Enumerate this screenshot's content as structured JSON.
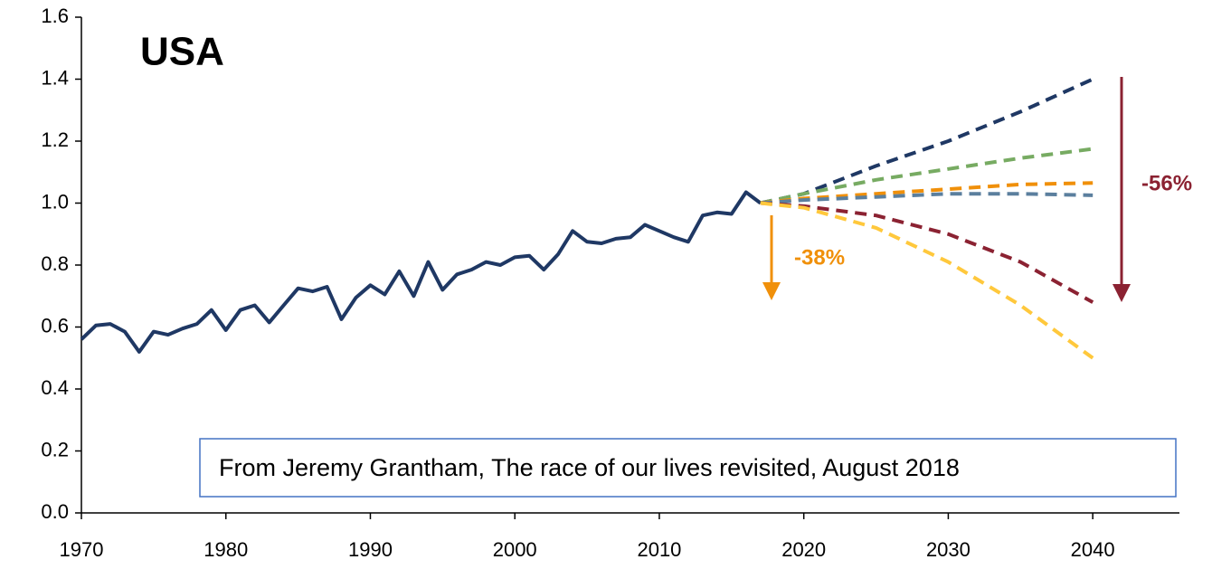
{
  "chart_data": {
    "type": "line",
    "title": "USA",
    "annotations": [
      "-38%",
      "-56%"
    ],
    "source": "From Jeremy Grantham, The race of our lives revisited, August 2018",
    "xlim": [
      1970,
      2046
    ],
    "xticks": [
      1970,
      1980,
      1990,
      2000,
      2010,
      2020,
      2030,
      2040
    ],
    "ylim": [
      0,
      1.6
    ],
    "yticks": [
      {
        "value": 0,
        "label": "0.0"
      },
      0.2,
      0.4,
      0.6,
      0.8,
      {
        "value": 1,
        "label": "1.0"
      },
      1.2,
      1.4,
      1.6
    ],
    "series": [
      {
        "color": "#1f3864",
        "dashed": false,
        "x": [
          1970,
          1971,
          1972,
          1973,
          1974,
          1975,
          1976,
          1977,
          1978,
          1979,
          1980,
          1981,
          1982,
          1983,
          1984,
          1985,
          1986,
          1987,
          1988,
          1989,
          1990,
          1991,
          1992,
          1993,
          1994,
          1995,
          1996,
          1997,
          1998,
          1999,
          2000,
          2001,
          2002,
          2003,
          2004,
          2005,
          2006,
          2007,
          2008,
          2009,
          2010,
          2011,
          2012,
          2013,
          2014,
          2015,
          2016,
          2017
        ],
        "values": [
          0.56,
          0.605,
          0.61,
          0.585,
          0.52,
          0.585,
          0.575,
          0.595,
          0.61,
          0.655,
          0.59,
          0.655,
          0.67,
          0.615,
          0.67,
          0.725,
          0.715,
          0.73,
          0.625,
          0.695,
          0.735,
          0.705,
          0.78,
          0.7,
          0.81,
          0.72,
          0.77,
          0.785,
          0.81,
          0.8,
          0.825,
          0.83,
          0.785,
          0.835,
          0.91,
          0.875,
          0.87,
          0.885,
          0.89,
          0.93,
          0.91,
          0.89,
          0.875,
          0.96,
          0.97,
          0.965,
          1.035,
          1.0
        ]
      },
      {
        "color": "#1f3864",
        "dashed": true,
        "x": [
          2017,
          2020,
          2025,
          2030,
          2035,
          2040
        ],
        "values": [
          1.0,
          1.03,
          1.12,
          1.2,
          1.295,
          1.4
        ]
      },
      {
        "color": "#77ab62",
        "dashed": true,
        "x": [
          2017,
          2020,
          2025,
          2030,
          2035,
          2040
        ],
        "values": [
          1.0,
          1.03,
          1.075,
          1.11,
          1.145,
          1.175
        ]
      },
      {
        "color": "#f0900a",
        "dashed": true,
        "x": [
          2017,
          2020,
          2025,
          2030,
          2035,
          2040
        ],
        "values": [
          1.0,
          1.015,
          1.03,
          1.045,
          1.06,
          1.065
        ]
      },
      {
        "color": "#5b7f9e",
        "dashed": true,
        "x": [
          2017,
          2020,
          2025,
          2030,
          2035,
          2040
        ],
        "values": [
          1.0,
          1.01,
          1.02,
          1.03,
          1.03,
          1.025
        ]
      },
      {
        "color": "#8b2232",
        "dashed": true,
        "x": [
          2017,
          2020,
          2025,
          2030,
          2035,
          2040
        ],
        "values": [
          1.0,
          0.99,
          0.96,
          0.9,
          0.81,
          0.68
        ]
      },
      {
        "color": "#ffc83c",
        "dashed": true,
        "x": [
          2017,
          2020,
          2025,
          2030,
          2035,
          2040
        ],
        "values": [
          1.0,
          0.985,
          0.92,
          0.81,
          0.67,
          0.5
        ]
      }
    ]
  }
}
